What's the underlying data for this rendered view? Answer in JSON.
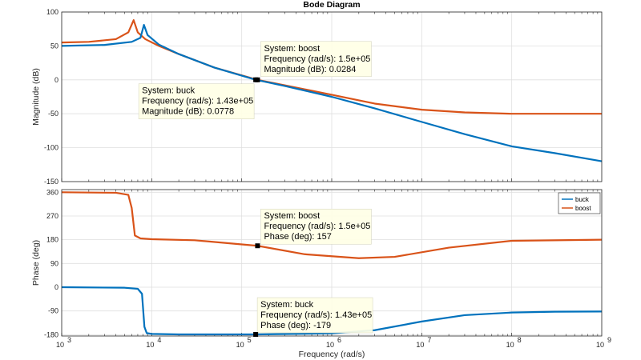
{
  "chart_data": {
    "type": "line",
    "title": "Bode Diagram",
    "xlabel": "Frequency  (rad/s)",
    "x_scale": "log",
    "xlim": [
      1000,
      1000000000
    ],
    "x_tick_labels": [
      {
        "base": "10",
        "exp": "3"
      },
      {
        "base": "10",
        "exp": "4"
      },
      {
        "base": "10",
        "exp": "5"
      },
      {
        "base": "10",
        "exp": "6"
      },
      {
        "base": "10",
        "exp": "7"
      },
      {
        "base": "10",
        "exp": "8"
      },
      {
        "base": "10",
        "exp": "9"
      }
    ],
    "grid": true,
    "legend": {
      "position": "top-right",
      "entries": [
        "buck",
        "boost"
      ]
    },
    "colors": {
      "buck": "#0072bd",
      "boost": "#d95319"
    },
    "panels": [
      {
        "name": "magnitude",
        "ylabel": "Magnitude (dB)",
        "ylim": [
          -150,
          100
        ],
        "yticks": [
          -150,
          -100,
          -50,
          0,
          50,
          100
        ],
        "series": [
          {
            "name": "buck",
            "x": [
              1000,
              3000,
              6000,
              7500,
              8200,
              9000,
              12000,
              20000,
              50000,
              143000,
              300000,
              1000000,
              3000000,
              10000000,
              30000000,
              100000000,
              300000000,
              1000000000
            ],
            "y": [
              50,
              51.5,
              56,
              62,
              81,
              66,
              52,
              38,
              18,
              0.0778,
              -9,
              -25,
              -42,
              -62,
              -80,
              -98,
              -108,
              -120
            ]
          },
          {
            "name": "boost",
            "x": [
              1000,
              2000,
              4000,
              5500,
              6300,
              7000,
              8500,
              12000,
              20000,
              50000,
              150000,
              300000,
              1000000,
              3000000,
              10000000,
              30000000,
              100000000,
              300000000,
              1000000000
            ],
            "y": [
              55,
              56,
              60,
              70,
              88,
              70,
              60,
              50,
              38,
              18,
              0.0284,
              -8,
              -22,
              -35,
              -44,
              -48,
              -50,
              -50,
              -50
            ]
          }
        ],
        "datatips": [
          {
            "system": "boost",
            "x": 150000,
            "y": 0.0284,
            "lines": [
              "System: boost",
              "Frequency (rad/s): 1.5e+05",
              "Magnitude (dB): 0.0284"
            ]
          },
          {
            "system": "buck",
            "x": 143000,
            "y": 0.0778,
            "lines": [
              "System: buck",
              "Frequency (rad/s): 1.43e+05",
              "Magnitude (dB): 0.0778"
            ]
          }
        ]
      },
      {
        "name": "phase",
        "ylabel": "Phase (deg)",
        "ylim": [
          -185,
          370
        ],
        "yticks": [
          -180,
          -90,
          0,
          90,
          180,
          270,
          360
        ],
        "series": [
          {
            "name": "buck",
            "x": [
              1000,
              5000,
              7000,
              7800,
              8300,
              8800,
              10000,
              20000,
              100000,
              143000,
              1000000,
              3000000,
              10000000,
              30000000,
              100000000,
              300000000,
              1000000000
            ],
            "y": [
              0,
              -2,
              -6,
              -25,
              -150,
              -174,
              -177,
              -179,
              -179,
              -179,
              -175,
              -163,
              -130,
              -106,
              -96,
              -93,
              -92
            ]
          },
          {
            "name": "boost",
            "x": [
              1000,
              4000,
              5500,
              6000,
              6500,
              7500,
              10000,
              30000,
              150000,
              500000,
              2000000,
              5000000,
              20000000,
              100000000,
              1000000000
            ],
            "y": [
              360,
              358,
              350,
              300,
              196,
              185,
              182,
              178,
              157,
              125,
              110,
              115,
              150,
              176,
              180
            ]
          }
        ],
        "datatips": [
          {
            "system": "boost",
            "x": 150000,
            "y": 157,
            "lines": [
              "System: boost",
              "Frequency (rad/s): 1.5e+05",
              "Phase (deg): 157"
            ]
          },
          {
            "system": "buck",
            "x": 143000,
            "y": -179,
            "lines": [
              "System: buck",
              "Frequency (rad/s): 1.43e+05",
              "Phase (deg): -179"
            ]
          }
        ]
      }
    ]
  }
}
